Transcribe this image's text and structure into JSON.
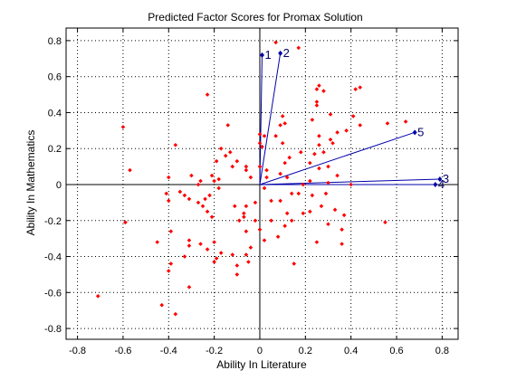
{
  "chart_data": {
    "type": "scatter",
    "title": "Predicted Factor Scores for Promax Solution",
    "xlabel": "Ability In Literature",
    "ylabel": "Ability In Mathematics",
    "xlim": [
      -0.85,
      0.87
    ],
    "ylim": [
      -0.86,
      0.87
    ],
    "grid": true,
    "x_ticks": [
      -0.8,
      -0.6,
      -0.4,
      -0.2,
      0,
      0.2,
      0.4,
      0.6,
      0.8
    ],
    "x_tick_labels": [
      "-0.8",
      "-0.6",
      "-0.4",
      "-0.2",
      "0",
      "0.2",
      "0.4",
      "0.6",
      "0.8"
    ],
    "y_ticks": [
      -0.8,
      -0.6,
      -0.4,
      -0.2,
      0,
      0.2,
      0.4,
      0.6,
      0.8
    ],
    "y_tick_labels": [
      "-0.8",
      "-0.6",
      "-0.4",
      "-0.2",
      "0",
      "0.2",
      "0.4",
      "0.6",
      "0.8"
    ],
    "colors": {
      "points": "#ff0000",
      "vectors": "#0000aa",
      "axes": "#000000",
      "grid": "#000000"
    },
    "vectors": [
      {
        "label": "1",
        "x": 0.01,
        "y": 0.72
      },
      {
        "label": "2",
        "x": 0.09,
        "y": 0.73
      },
      {
        "label": "3",
        "x": 0.79,
        "y": 0.03
      },
      {
        "label": "4",
        "x": 0.77,
        "y": 0.0
      },
      {
        "label": "5",
        "x": 0.68,
        "y": 0.29
      }
    ],
    "points": [
      [
        0.07,
        0.79
      ],
      [
        0.17,
        0.76
      ],
      [
        0.26,
        0.55
      ],
      [
        0.25,
        0.53
      ],
      [
        0.28,
        0.52
      ],
      [
        0.44,
        0.54
      ],
      [
        0.42,
        0.53
      ],
      [
        0.25,
        0.46
      ],
      [
        0.25,
        0.44
      ],
      [
        0.31,
        0.39
      ],
      [
        0.23,
        0.36
      ],
      [
        0.41,
        0.38
      ],
      [
        0.38,
        0.3
      ],
      [
        0.44,
        0.33
      ],
      [
        0.56,
        0.34
      ],
      [
        0.64,
        0.35
      ],
      [
        0.1,
        0.38
      ],
      [
        0.11,
        0.34
      ],
      [
        0.09,
        0.33
      ],
      [
        0.07,
        0.27
      ],
      [
        0.02,
        0.27
      ],
      [
        0.0,
        0.23
      ],
      [
        0.01,
        0.21
      ],
      [
        0.0,
        0.28
      ],
      [
        0.26,
        0.22
      ],
      [
        0.26,
        0.27
      ],
      [
        0.34,
        0.29
      ],
      [
        0.31,
        0.25
      ],
      [
        0.32,
        0.23
      ],
      [
        0.18,
        0.18
      ],
      [
        0.24,
        0.17
      ],
      [
        0.22,
        0.12
      ],
      [
        0.28,
        0.18
      ],
      [
        0.3,
        0.1
      ],
      [
        0.26,
        0.09
      ],
      [
        0.13,
        0.15
      ],
      [
        0.1,
        0.23
      ],
      [
        0.11,
        0.12
      ],
      [
        0.12,
        0.04
      ],
      [
        0.09,
        0.06
      ],
      [
        0.03,
        0.04
      ],
      [
        0.03,
        0.08
      ],
      [
        0.0,
        0.1
      ],
      [
        0.22,
        0.02
      ],
      [
        0.19,
        0.0
      ],
      [
        0.3,
        0.01
      ],
      [
        0.34,
        0.05
      ],
      [
        0.4,
        0.0
      ],
      [
        0.02,
        -0.02
      ],
      [
        0.05,
        -0.09
      ],
      [
        0.14,
        -0.05
      ],
      [
        0.17,
        -0.05
      ],
      [
        0.23,
        -0.06
      ],
      [
        0.29,
        -0.05
      ],
      [
        0.27,
        -0.12
      ],
      [
        0.33,
        -0.14
      ],
      [
        0.37,
        -0.17
      ],
      [
        0.3,
        -0.22
      ],
      [
        0.22,
        -0.15
      ],
      [
        0.09,
        -0.09
      ],
      [
        0.12,
        -0.16
      ],
      [
        0.14,
        -0.2
      ],
      [
        0.19,
        -0.16
      ],
      [
        0.11,
        -0.23
      ],
      [
        0.05,
        -0.2
      ],
      [
        0.08,
        -0.29
      ],
      [
        0.02,
        -0.31
      ],
      [
        -0.04,
        -0.35
      ],
      [
        -0.06,
        -0.39
      ],
      [
        -0.12,
        -0.39
      ],
      [
        -0.1,
        -0.45
      ],
      [
        -0.1,
        -0.5
      ],
      [
        -0.05,
        -0.43
      ],
      [
        0.0,
        -0.25
      ],
      [
        0.25,
        -0.32
      ],
      [
        0.36,
        -0.25
      ],
      [
        0.36,
        -0.33
      ],
      [
        0.55,
        -0.21
      ],
      [
        0.15,
        -0.44
      ],
      [
        -0.02,
        -0.1
      ],
      [
        -0.02,
        -0.2
      ],
      [
        -0.06,
        -0.12
      ],
      [
        -0.07,
        -0.16
      ],
      [
        -0.07,
        -0.18
      ],
      [
        -0.06,
        -0.26
      ],
      [
        -0.09,
        -0.2
      ],
      [
        -0.11,
        -0.12
      ],
      [
        -0.12,
        0.1
      ],
      [
        -0.1,
        0.13
      ],
      [
        -0.06,
        0.08
      ],
      [
        -0.04,
        0.04
      ],
      [
        -0.13,
        0.18
      ],
      [
        -0.15,
        0.16
      ],
      [
        -0.17,
        0.2
      ],
      [
        -0.19,
        0.13
      ],
      [
        -0.18,
        0.03
      ],
      [
        -0.18,
        -0.02
      ],
      [
        -0.21,
        0.05
      ],
      [
        -0.2,
        0.02
      ],
      [
        -0.22,
        -0.06
      ],
      [
        -0.24,
        -0.08
      ],
      [
        -0.25,
        -0.12
      ],
      [
        -0.23,
        -0.15
      ],
      [
        -0.21,
        -0.18
      ],
      [
        -0.27,
        -0.1
      ],
      [
        -0.26,
        0.02
      ],
      [
        -0.27,
        0.0
      ],
      [
        -0.3,
        0.05
      ],
      [
        -0.23,
        0.5
      ],
      [
        -0.14,
        0.33
      ],
      [
        -0.06,
        0.1
      ],
      [
        -0.2,
        -0.32
      ],
      [
        -0.17,
        -0.38
      ],
      [
        -0.19,
        -0.41
      ],
      [
        -0.2,
        -0.43
      ],
      [
        -0.23,
        -0.36
      ],
      [
        -0.26,
        -0.33
      ],
      [
        -0.31,
        -0.08
      ],
      [
        -0.33,
        -0.06
      ],
      [
        -0.35,
        -0.04
      ],
      [
        -0.4,
        0.04
      ],
      [
        -0.41,
        -0.05
      ],
      [
        -0.4,
        -0.09
      ],
      [
        -0.37,
        0.22
      ],
      [
        -0.57,
        0.08
      ],
      [
        -0.59,
        -0.21
      ],
      [
        -0.6,
        0.32
      ],
      [
        -0.31,
        -0.31
      ],
      [
        -0.31,
        -0.34
      ],
      [
        -0.33,
        -0.4
      ],
      [
        -0.39,
        -0.26
      ],
      [
        -0.39,
        -0.44
      ],
      [
        -0.4,
        -0.48
      ],
      [
        -0.45,
        -0.32
      ],
      [
        -0.43,
        -0.67
      ],
      [
        -0.37,
        -0.72
      ],
      [
        -0.31,
        -0.57
      ],
      [
        -0.71,
        -0.62
      ],
      [
        -0.59,
        -0.21
      ]
    ]
  }
}
